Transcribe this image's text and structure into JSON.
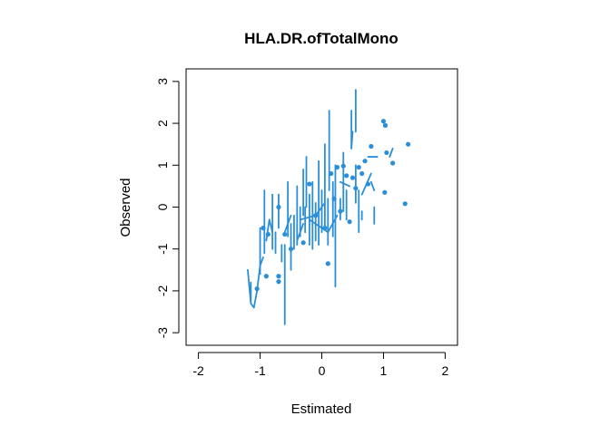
{
  "chart_data": {
    "type": "scatter",
    "title": "HLA.DR.ofTotalMono",
    "xlabel": "Estimated",
    "ylabel": "Observed",
    "xlim": [
      -2.2,
      2.2
    ],
    "ylim": [
      -3.3,
      3.3
    ],
    "xticks": [
      -2,
      -1,
      0,
      1,
      2
    ],
    "yticks": [
      -3,
      -2,
      -1,
      0,
      1,
      2,
      3
    ],
    "xtick_labels": [
      "-2",
      "-1",
      "0",
      "1",
      "2"
    ],
    "ytick_labels": [
      "-3",
      "-2",
      "-1",
      "0",
      "1",
      "2",
      "3"
    ],
    "grid": false,
    "color": "#2B8FD8",
    "series": [
      {
        "type": "points",
        "points": [
          [
            -1.05,
            -1.95
          ],
          [
            -0.9,
            -1.65
          ],
          [
            -0.95,
            -0.5
          ],
          [
            -0.87,
            -0.65
          ],
          [
            -0.7,
            -1.65
          ],
          [
            -0.7,
            -1.78
          ],
          [
            -0.7,
            0.0
          ],
          [
            -0.6,
            -0.65
          ],
          [
            -0.5,
            -1.0
          ],
          [
            -0.3,
            -0.85
          ],
          [
            -0.1,
            -0.2
          ],
          [
            0.05,
            -0.5
          ],
          [
            0.1,
            -1.35
          ],
          [
            0.15,
            0.8
          ],
          [
            0.2,
            0.2
          ],
          [
            0.25,
            0.95
          ],
          [
            0.3,
            -0.1
          ],
          [
            0.35,
            0.98
          ],
          [
            0.4,
            0.75
          ],
          [
            0.45,
            -0.35
          ],
          [
            0.6,
            0.95
          ],
          [
            0.65,
            0.8
          ],
          [
            0.7,
            1.1
          ],
          [
            0.75,
            0.55
          ],
          [
            0.8,
            1.45
          ],
          [
            1.0,
            2.05
          ],
          [
            1.03,
            1.95
          ],
          [
            1.05,
            1.3
          ],
          [
            1.02,
            0.35
          ],
          [
            1.35,
            0.08
          ],
          [
            1.4,
            1.5
          ],
          [
            1.15,
            1.05
          ],
          [
            0.5,
            0.7
          ],
          [
            0.55,
            0.45
          ],
          [
            -0.2,
            0.55
          ]
        ]
      },
      {
        "type": "segments",
        "segments": [
          [
            [
              -1.2,
              -1.5
            ],
            [
              -1.15,
              -2.3
            ]
          ],
          [
            [
              -1.15,
              -2.3
            ],
            [
              -1.1,
              -2.4
            ]
          ],
          [
            [
              -1.1,
              -2.4
            ],
            [
              -1.05,
              -2.0
            ]
          ],
          [
            [
              -1.05,
              -2.0
            ],
            [
              -1.0,
              -1.4
            ]
          ],
          [
            [
              -1.0,
              -1.4
            ],
            [
              -0.95,
              -1.2
            ]
          ],
          [
            [
              -1.15,
              -1.8
            ],
            [
              -1.15,
              -2.25
            ]
          ],
          [
            [
              -1.0,
              -0.5
            ],
            [
              -1.0,
              -1.6
            ]
          ],
          [
            [
              -0.93,
              0.4
            ],
            [
              -0.93,
              -1.1
            ]
          ],
          [
            [
              -0.9,
              -0.8
            ],
            [
              -0.85,
              -0.3
            ]
          ],
          [
            [
              -0.85,
              -0.3
            ],
            [
              -0.8,
              -0.6
            ]
          ],
          [
            [
              -0.8,
              0.3
            ],
            [
              -0.8,
              -1.0
            ]
          ],
          [
            [
              -0.75,
              -0.6
            ],
            [
              -0.75,
              -1.1
            ]
          ],
          [
            [
              -0.7,
              0.3
            ],
            [
              -0.7,
              -0.5
            ]
          ],
          [
            [
              -0.65,
              -0.9
            ],
            [
              -0.65,
              -1.3
            ]
          ],
          [
            [
              -0.6,
              -0.9
            ],
            [
              -0.6,
              -2.8
            ]
          ],
          [
            [
              -0.55,
              0.6
            ],
            [
              -0.55,
              -0.7
            ]
          ],
          [
            [
              -0.5,
              -0.4
            ],
            [
              -0.5,
              -1.5
            ]
          ],
          [
            [
              -0.45,
              -0.2
            ],
            [
              -0.45,
              -1.0
            ]
          ],
          [
            [
              -0.4,
              0.5
            ],
            [
              -0.4,
              -0.9
            ]
          ],
          [
            [
              -0.35,
              0.0
            ],
            [
              -0.35,
              -0.7
            ]
          ],
          [
            [
              -0.3,
              0.9
            ],
            [
              -0.3,
              -0.2
            ]
          ],
          [
            [
              -0.27,
              0.0
            ],
            [
              -0.27,
              -0.6
            ]
          ],
          [
            [
              -0.25,
              1.2
            ],
            [
              -0.25,
              0.0
            ]
          ],
          [
            [
              -0.2,
              0.3
            ],
            [
              -0.2,
              -0.9
            ]
          ],
          [
            [
              -0.15,
              0.6
            ],
            [
              -0.15,
              -1.0
            ]
          ],
          [
            [
              -0.1,
              0.1
            ],
            [
              -0.1,
              -0.8
            ]
          ],
          [
            [
              -0.05,
              1.1
            ],
            [
              -0.05,
              -0.9
            ]
          ],
          [
            [
              0.0,
              0.4
            ],
            [
              0.0,
              -0.6
            ]
          ],
          [
            [
              0.05,
              1.5
            ],
            [
              0.05,
              -0.5
            ]
          ],
          [
            [
              0.1,
              0.2
            ],
            [
              0.1,
              -0.9
            ]
          ],
          [
            [
              0.12,
              2.3
            ],
            [
              0.12,
              0.4
            ]
          ],
          [
            [
              0.18,
              0.6
            ],
            [
              0.18,
              -0.7
            ]
          ],
          [
            [
              0.22,
              1.0
            ],
            [
              0.22,
              -1.9
            ]
          ],
          [
            [
              0.3,
              0.2
            ],
            [
              0.3,
              -0.3
            ]
          ],
          [
            [
              0.35,
              1.3
            ],
            [
              0.35,
              -0.1
            ]
          ],
          [
            [
              0.4,
              0.4
            ],
            [
              0.4,
              -0.3
            ]
          ],
          [
            [
              0.48,
              2.3
            ],
            [
              0.48,
              1.4
            ]
          ],
          [
            [
              0.48,
              1.4
            ],
            [
              0.5,
              1.8
            ]
          ],
          [
            [
              0.55,
              2.8
            ],
            [
              0.55,
              1.8
            ]
          ],
          [
            [
              0.55,
              1.0
            ],
            [
              0.55,
              0.1
            ]
          ],
          [
            [
              0.6,
              0.4
            ],
            [
              0.6,
              -0.6
            ]
          ],
          [
            [
              0.65,
              -0.1
            ],
            [
              0.65,
              -0.3
            ]
          ],
          [
            [
              0.65,
              0.3
            ],
            [
              0.8,
              0.8
            ]
          ],
          [
            [
              0.75,
              1.2
            ],
            [
              0.9,
              1.2
            ]
          ],
          [
            [
              0.8,
              0.6
            ],
            [
              0.85,
              0.4
            ]
          ],
          [
            [
              0.85,
              0.0
            ],
            [
              0.85,
              -0.4
            ]
          ],
          [
            [
              1.1,
              1.2
            ],
            [
              1.15,
              1.4
            ]
          ],
          [
            [
              -0.2,
              -0.3
            ],
            [
              0.1,
              -0.6
            ]
          ],
          [
            [
              0.1,
              -0.6
            ],
            [
              0.25,
              -0.2
            ]
          ],
          [
            [
              -0.35,
              -0.3
            ],
            [
              -0.1,
              -0.2
            ]
          ],
          [
            [
              -0.1,
              -0.2
            ],
            [
              0.05,
              0.1
            ]
          ],
          [
            [
              0.3,
              0.6
            ],
            [
              0.45,
              0.5
            ]
          ],
          [
            [
              -0.6,
              -0.6
            ],
            [
              -0.5,
              -0.2
            ]
          ],
          [
            [
              -0.4,
              -0.8
            ],
            [
              -0.3,
              -0.4
            ]
          ]
        ]
      }
    ]
  }
}
